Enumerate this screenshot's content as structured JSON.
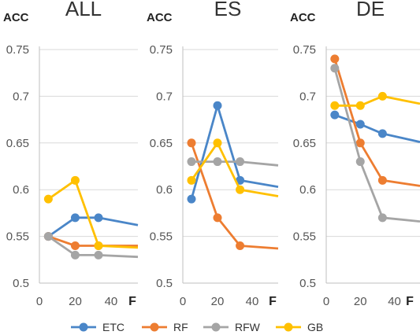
{
  "colors": {
    "ETC": "#4a86c8",
    "RF": "#ed7d31",
    "RFW": "#a5a5a5",
    "GB": "#ffc000"
  },
  "chart_data": [
    {
      "type": "line",
      "title": "ALL",
      "ylabel": "ACC",
      "xlabel": "F",
      "ylim": [
        0.5,
        0.75
      ],
      "xlim": [
        0,
        55
      ],
      "yticks": [
        "0.75",
        "0.7",
        "0.65",
        "0.6",
        "0.55",
        "0.5"
      ],
      "xticks": [
        "0",
        "20",
        "40"
      ],
      "x": [
        5,
        20,
        33
      ],
      "series": [
        {
          "name": "ETC",
          "values": [
            0.55,
            0.57,
            0.57
          ],
          "tail": 0.562
        },
        {
          "name": "RF",
          "values": [
            0.55,
            0.54,
            0.54
          ],
          "tail": 0.54
        },
        {
          "name": "RFW",
          "values": [
            0.55,
            0.53,
            0.53
          ],
          "tail": 0.528
        },
        {
          "name": "GB",
          "values": [
            0.59,
            0.61,
            0.54
          ],
          "tail": 0.538
        }
      ]
    },
    {
      "type": "line",
      "title": "ES",
      "ylabel": "ACC",
      "xlabel": "F",
      "ylim": [
        0.5,
        0.75
      ],
      "xlim": [
        0,
        55
      ],
      "yticks": [
        "0.75",
        "0.7",
        "0.65",
        "0.6",
        "0.55",
        "0.5"
      ],
      "xticks": [
        "0",
        "20",
        "40"
      ],
      "x": [
        5,
        20,
        33
      ],
      "series": [
        {
          "name": "ETC",
          "values": [
            0.59,
            0.69,
            0.61
          ],
          "tail": 0.603
        },
        {
          "name": "RF",
          "values": [
            0.65,
            0.57,
            0.54
          ],
          "tail": 0.537
        },
        {
          "name": "RFW",
          "values": [
            0.63,
            0.63,
            0.63
          ],
          "tail": 0.626
        },
        {
          "name": "GB",
          "values": [
            0.61,
            0.65,
            0.6
          ],
          "tail": 0.593
        }
      ]
    },
    {
      "type": "line",
      "title": "DE",
      "ylabel": "ACC",
      "xlabel": "F",
      "ylim": [
        0.5,
        0.75
      ],
      "xlim": [
        0,
        55
      ],
      "yticks": [
        "0.75",
        "0.7",
        "0.65",
        "0.6",
        "0.55",
        "0.5"
      ],
      "xticks": [
        "0",
        "20",
        "40"
      ],
      "x": [
        5,
        20,
        33
      ],
      "series": [
        {
          "name": "ETC",
          "values": [
            0.68,
            0.67,
            0.66
          ],
          "tail": 0.651
        },
        {
          "name": "RF",
          "values": [
            0.74,
            0.65,
            0.61
          ],
          "tail": 0.604
        },
        {
          "name": "RFW",
          "values": [
            0.73,
            0.63,
            0.57
          ],
          "tail": 0.566
        },
        {
          "name": "GB",
          "values": [
            0.69,
            0.69,
            0.7
          ],
          "tail": 0.692
        }
      ]
    }
  ],
  "legend": [
    "ETC",
    "RF",
    "RFW",
    "GB"
  ]
}
